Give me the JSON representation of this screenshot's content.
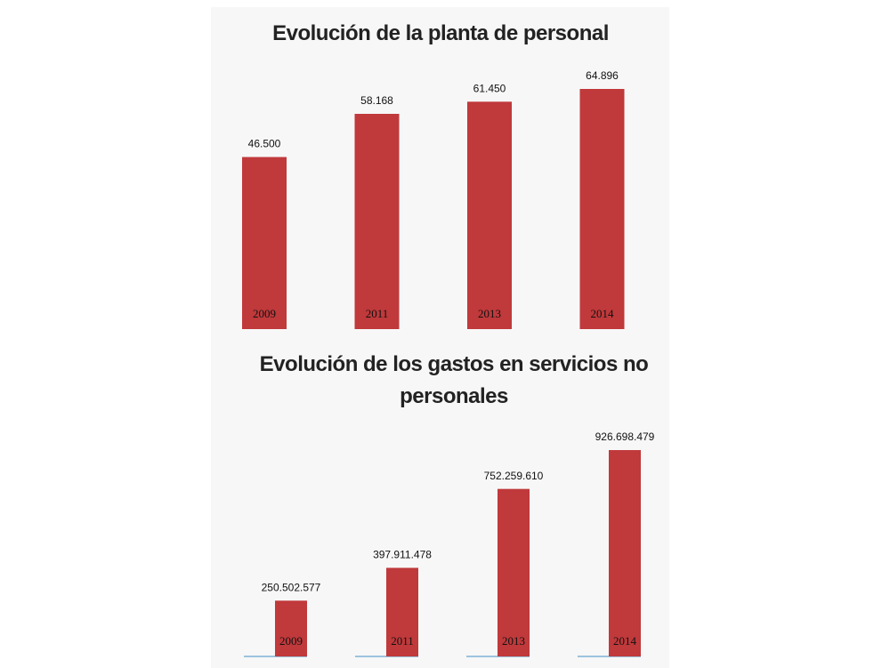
{
  "chart_data": [
    {
      "type": "bar",
      "title": "Evolución de la planta de personal",
      "categories": [
        "2009",
        "2011",
        "2013",
        "2014"
      ],
      "values": [
        46500,
        58168,
        61450,
        64896
      ],
      "value_labels": [
        "46.500",
        "58.168",
        "61.450",
        "64.896"
      ],
      "color": "#c0393b"
    },
    {
      "type": "bar",
      "title": "Evolución de los gastos en servicios no personales",
      "categories": [
        "2009",
        "2011",
        "2013",
        "2014"
      ],
      "values": [
        250502577,
        397911478,
        752259610,
        926698479
      ],
      "value_labels": [
        "250.502.577",
        "397.911.478",
        "752.259.610",
        "926.698.479"
      ],
      "color": "#c0393b"
    }
  ]
}
